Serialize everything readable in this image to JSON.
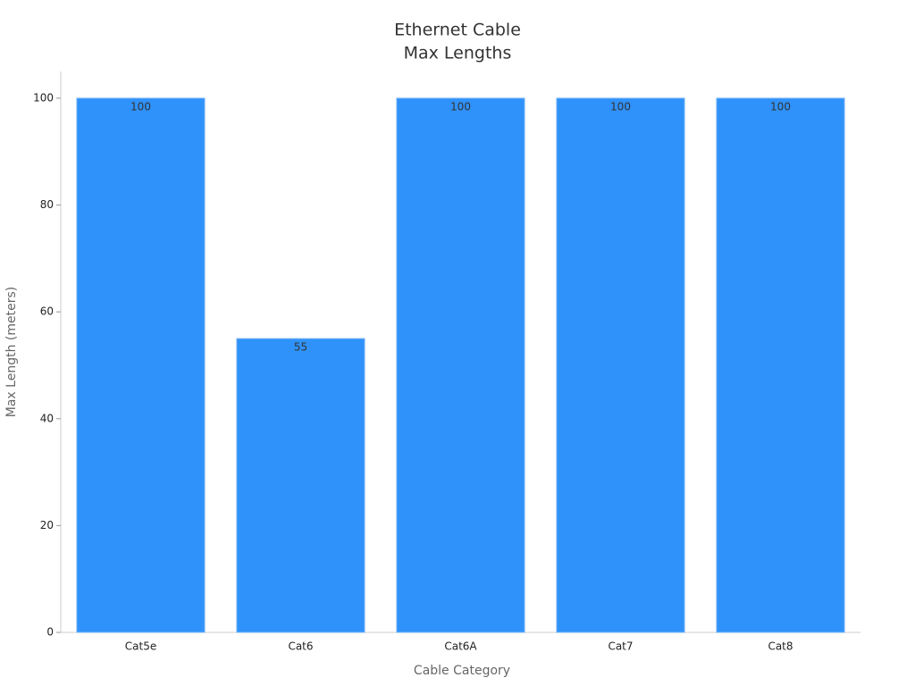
{
  "chart_data": {
    "type": "bar",
    "title": [
      "Ethernet Cable",
      "Max Lengths"
    ],
    "x_label": "Cable Category",
    "y_label": "Max Length (meters)",
    "categories": [
      "Cat5e",
      "Cat6",
      "Cat6A",
      "Cat7",
      "Cat8"
    ],
    "values": [
      100,
      55,
      100,
      100,
      100
    ],
    "color": "#2f92fa",
    "ylim": [
      0,
      105
    ],
    "yticks": [
      0,
      20,
      40,
      60,
      80,
      100
    ],
    "grid": false
  }
}
